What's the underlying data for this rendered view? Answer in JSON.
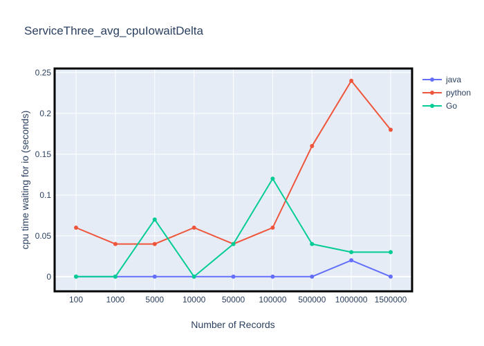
{
  "chart_data": {
    "type": "line",
    "title": "ServiceThree_avg_cpuIowaitDelta",
    "xlabel": "Number of Records",
    "ylabel": "cpu time waiting for io (seconds)",
    "categories": [
      "100",
      "1000",
      "5000",
      "10000",
      "50000",
      "100000",
      "500000",
      "1000000",
      "1500000"
    ],
    "ylim": [
      -0.018,
      0.255
    ],
    "yticks": [
      0,
      0.05,
      0.1,
      0.15,
      0.2,
      0.25
    ],
    "ytick_labels": [
      "0",
      "0.05",
      "0.1",
      "0.15",
      "0.2",
      "0.25"
    ],
    "grid": true,
    "legend_position": "right",
    "series": [
      {
        "name": "java",
        "color": "#636efa",
        "values": [
          0,
          0,
          0,
          0,
          0,
          0,
          0,
          0.02,
          0
        ]
      },
      {
        "name": "python",
        "color": "#ef553b",
        "values": [
          0.06,
          0.04,
          0.04,
          0.06,
          0.04,
          0.06,
          0.16,
          0.24,
          0.18
        ]
      },
      {
        "name": "Go",
        "color": "#00cc96",
        "values": [
          0,
          0,
          0.07,
          0,
          0.04,
          0.12,
          0.04,
          0.03,
          0.03
        ]
      }
    ],
    "colors": {
      "plot_bg": "#e5ecf6",
      "grid": "#ffffff",
      "text": "#2a3f5f",
      "frame": "#000000"
    }
  }
}
